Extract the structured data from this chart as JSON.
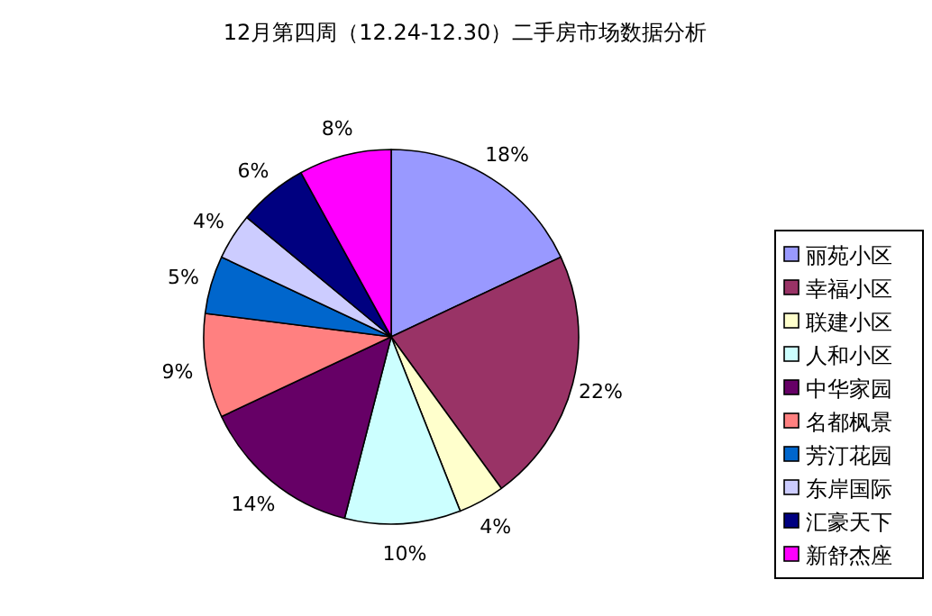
{
  "chart_data": {
    "type": "pie",
    "title": "12月第四周（12.24-12.30）二手房市场数据分析",
    "categories": [
      "丽苑小区",
      "幸福小区",
      "联建小区",
      "人和小区",
      "中华家园",
      "名都枫景",
      "芳汀花园",
      "东岸国际",
      "汇豪天下",
      "新舒杰座"
    ],
    "values": [
      18,
      22,
      4,
      10,
      14,
      9,
      5,
      4,
      6,
      8
    ],
    "colors": [
      "#9999ff",
      "#993366",
      "#ffffcc",
      "#ccffff",
      "#660066",
      "#ff8080",
      "#0066cc",
      "#ccccff",
      "#000080",
      "#ff00ff"
    ],
    "value_labels": [
      "18%",
      "22%",
      "4%",
      "10%",
      "14%",
      "9%",
      "5%",
      "4%",
      "6%",
      "8%"
    ],
    "legend": "right"
  }
}
